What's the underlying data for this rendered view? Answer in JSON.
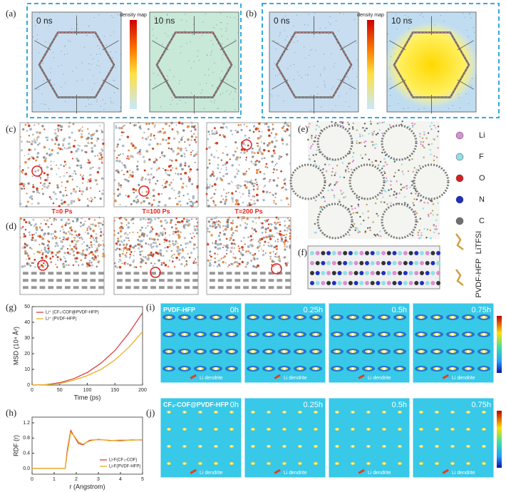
{
  "panels": {
    "a": {
      "label": "(a)",
      "times": [
        "0 ns",
        "10 ns"
      ],
      "colorbar": "density map"
    },
    "b": {
      "label": "(b)",
      "times": [
        "0 ns",
        "10 ns"
      ],
      "colorbar": "density map"
    },
    "c": {
      "label": "(c)",
      "times": [
        "T=0 Ps",
        "T=100 Ps",
        "T=200 Ps"
      ]
    },
    "d": {
      "label": "(d)"
    },
    "e": {
      "label": "(e)",
      "legend": [
        "Li",
        "F",
        "O",
        "N",
        "C",
        "LiTFSI",
        "PVDF-HFP"
      ],
      "legend_colors": [
        "#d98fd0",
        "#8fe0e8",
        "#d62020",
        "#2030c0",
        "#707070"
      ]
    },
    "f": {
      "label": "(f)"
    },
    "i": {
      "label": "(i)",
      "title": "PVDF-HFP",
      "times": [
        "0h",
        "0.25h",
        "0.5h",
        "0.75h"
      ],
      "annotation": "Li dendrite"
    },
    "j": {
      "label": "(j)",
      "title": "CF₃-COF@PVDF-HFP",
      "times": [
        "0h",
        "0.25h",
        "0.5h",
        "0.75h"
      ],
      "annotation": "Li dendrite"
    }
  },
  "chart_data": [
    {
      "type": "line",
      "panel_label": "(g)",
      "x_label": "Time (ps)",
      "y_label": "MSD (10⁴ Å²)",
      "x": [
        0,
        25,
        50,
        75,
        100,
        125,
        150,
        175,
        200
      ],
      "series": [
        {
          "name": "Li⁺ (CF₃-COF@PVDF-HFP)",
          "color": "#d94040",
          "values": [
            0,
            0.3,
            1.5,
            4,
            8,
            14,
            22,
            33,
            46
          ]
        },
        {
          "name": "Li⁺ (PVDF-HFP)",
          "color": "#e8b020",
          "values": [
            0,
            0.2,
            1,
            3,
            6,
            10,
            16,
            24,
            34
          ]
        }
      ],
      "xlim": [
        0,
        200
      ],
      "xticks": [
        0,
        50,
        100,
        150,
        200
      ],
      "ylim": [
        0,
        50
      ],
      "yticks": [
        0,
        10,
        20,
        30,
        40,
        50
      ],
      "legend": "upper left"
    },
    {
      "type": "line",
      "panel_label": "(h)",
      "x_label": "r (Angstrom)",
      "y_label": "RDF (r)",
      "x": [
        0,
        0.5,
        1,
        1.5,
        1.6,
        1.75,
        1.9,
        2.1,
        2.3,
        2.6,
        3,
        3.5,
        4,
        4.5,
        5
      ],
      "series": [
        {
          "name": "Li-F(CF₃-COF)",
          "color": "#d94040",
          "values": [
            0,
            0,
            0,
            0,
            0.5,
            1.0,
            0.85,
            0.66,
            0.62,
            0.74,
            0.76,
            0.74,
            0.73,
            0.75,
            0.75
          ]
        },
        {
          "name": "Li-F(PVDF-HFP)",
          "color": "#e8b020",
          "values": [
            0,
            0,
            0,
            0,
            0.42,
            0.95,
            0.86,
            0.7,
            0.64,
            0.72,
            0.77,
            0.73,
            0.75,
            0.74,
            0.76
          ]
        }
      ],
      "xlim": [
        0,
        5
      ],
      "xticks": [
        0,
        1,
        2,
        3,
        4,
        5
      ],
      "ylim": [
        -0.15,
        1.35
      ],
      "yticks": [
        {
          "value": 0,
          "label": "0.0"
        },
        0.4,
        0.8,
        1.2
      ],
      "legend": "lower right"
    }
  ]
}
